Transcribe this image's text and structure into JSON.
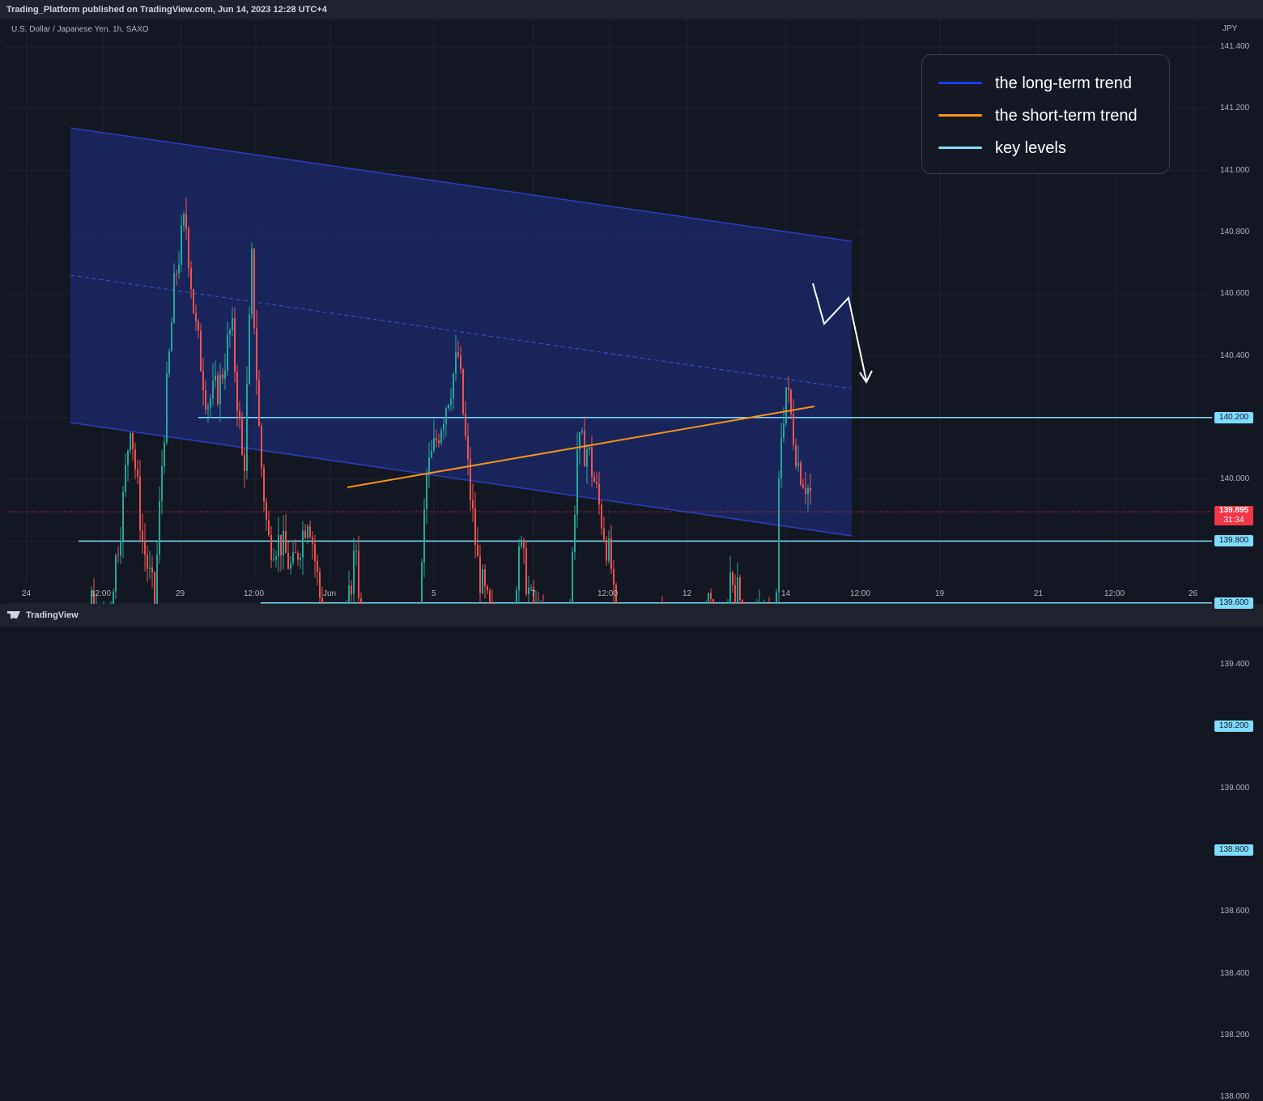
{
  "header": {
    "published_text": "Trading_Platform published on TradingView.com, Jun 14, 2023 12:28 UTC+4"
  },
  "symbol": {
    "title": "U.S. Dollar / Japanese Yen, 1h, SAXO"
  },
  "price_axis": {
    "currency": "JPY",
    "ticks": [
      "141.400",
      "141.200",
      "141.000",
      "140.800",
      "140.600",
      "140.400",
      "140.200",
      "140.000",
      "139.800",
      "139.600",
      "139.400",
      "139.200",
      "139.000",
      "138.800",
      "138.600",
      "138.400",
      "138.200",
      "138.000"
    ],
    "current_price": "139.895",
    "countdown": "31:34"
  },
  "time_axis": {
    "ticks": [
      "24",
      "12:00",
      "29",
      "12:00",
      "Jun",
      "5",
      "7",
      "12:00",
      "12",
      "14",
      "12:00",
      "19",
      "21",
      "12:00",
      "26"
    ]
  },
  "legend": {
    "items": [
      {
        "label": "the long-term trend",
        "color": "#1e3cf0"
      },
      {
        "label": "the short-term trend",
        "color": "#f7931a"
      },
      {
        "label": "key levels",
        "color": "#7fdcff"
      }
    ]
  },
  "key_levels": [
    {
      "price": 140.2,
      "label": "140.200"
    },
    {
      "price": 139.8,
      "label": "139.800"
    },
    {
      "price": 139.6,
      "label": "139.600"
    },
    {
      "price": 139.2,
      "label": "139.200"
    },
    {
      "price": 138.8,
      "label": "138.800"
    }
  ],
  "colors": {
    "up": "#26a69a",
    "down": "#ef5350",
    "channel": "#1e3cf0",
    "current": "#f23645",
    "level": "#7fdcff"
  },
  "footer": {
    "brand": "TradingView"
  }
}
